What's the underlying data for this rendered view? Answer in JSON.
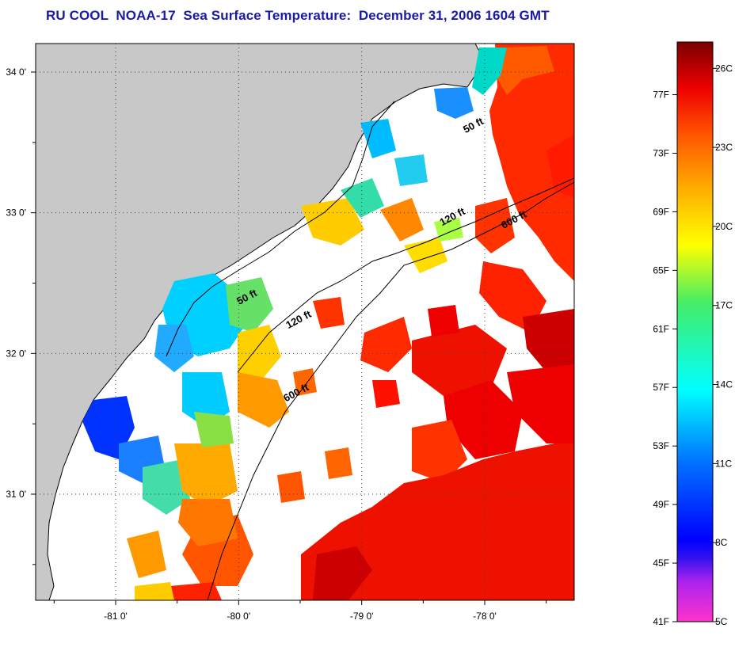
{
  "title": "RU COOL  NOAA-17  Sea Surface Temperature:  December 31, 2006 1604 GMT",
  "map": {
    "lat_ticks": [
      {
        "value": 34.0,
        "label": "34 0'"
      },
      {
        "value": 33.0,
        "label": "33 0'"
      },
      {
        "value": 32.0,
        "label": "32 0'"
      },
      {
        "value": 31.0,
        "label": "31 0'"
      }
    ],
    "lon_ticks": [
      {
        "value": -81.0,
        "label": "-81 0'"
      },
      {
        "value": -80.0,
        "label": "-80 0'"
      },
      {
        "value": -79.0,
        "label": "-79 0'"
      },
      {
        "value": -78.0,
        "label": "-78 0'"
      }
    ],
    "contour_labels": [
      {
        "label": "50 ft",
        "lon": -78.08,
        "lat": 33.6
      },
      {
        "label": "120 ft",
        "lon": -78.25,
        "lat": 32.95
      },
      {
        "label": "600 ft",
        "lon": -77.75,
        "lat": 32.93
      },
      {
        "label": "50 ft",
        "lon": -79.92,
        "lat": 32.38
      },
      {
        "label": "120 ft",
        "lon": -79.5,
        "lat": 32.22
      },
      {
        "label": "600 ft",
        "lon": -79.52,
        "lat": 31.7
      }
    ]
  },
  "colorbar": {
    "fahrenheit_labels": [
      "77F",
      "73F",
      "69F",
      "65F",
      "61F",
      "57F",
      "53F",
      "49F",
      "45F",
      "41F"
    ],
    "celsius_labels": [
      "26C",
      "23C",
      "20C",
      "17C",
      "14C",
      "11C",
      "8C",
      "5C"
    ],
    "celsius_range": [
      5,
      27
    ]
  },
  "colors": {
    "land": "#c8c8c8",
    "title": "#1a1aa8",
    "cloud": "#ffffff"
  }
}
